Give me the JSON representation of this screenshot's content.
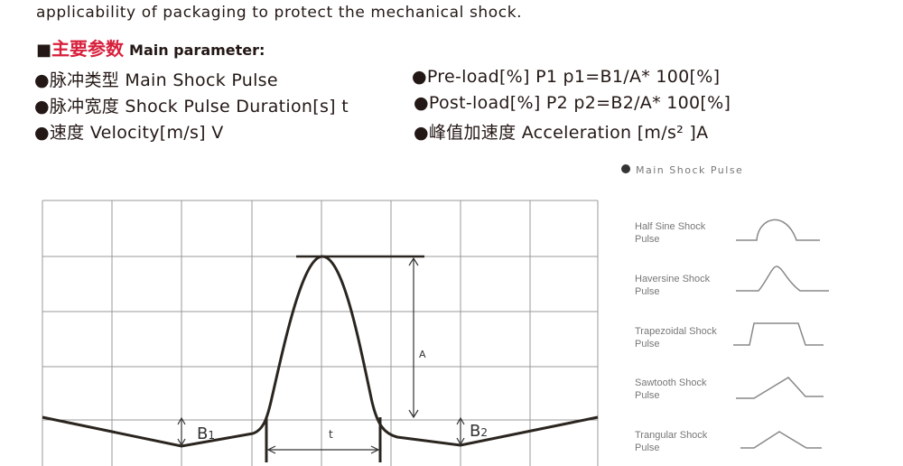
{
  "intro": "applicability of packaging to protect the mechanical shock.",
  "heading": {
    "marker": "■",
    "cn": "主要参数",
    "en": "Main parameter:"
  },
  "params": [
    "●脉冲类型 Main Shock Pulse",
    "●脉冲宽度 Shock Pulse Duration[s] t",
    "●速度 Velocity[m/s] V",
    "●Pre-load[%] P1 p1=B1/A* 100[%]",
    "●Post-load[%] P2 p2=B2/A* 100[%]",
    "●峰值加速度 Acceleration [m/s² ]A"
  ],
  "diagram": {
    "label_a": "A",
    "label_b1": "B",
    "label_b1_sub": "1",
    "label_b2": "B",
    "label_b2_sub": "2",
    "label_t": "t"
  },
  "legend": {
    "title": "Main Shock Pulse",
    "items": [
      "Half Sine Shock Pulse",
      "Haversine Shock Pulse",
      "Trapezoidal Shock Pulse",
      "Sawtooth Shock Pulse",
      "Trangular Shock Pulse"
    ]
  }
}
